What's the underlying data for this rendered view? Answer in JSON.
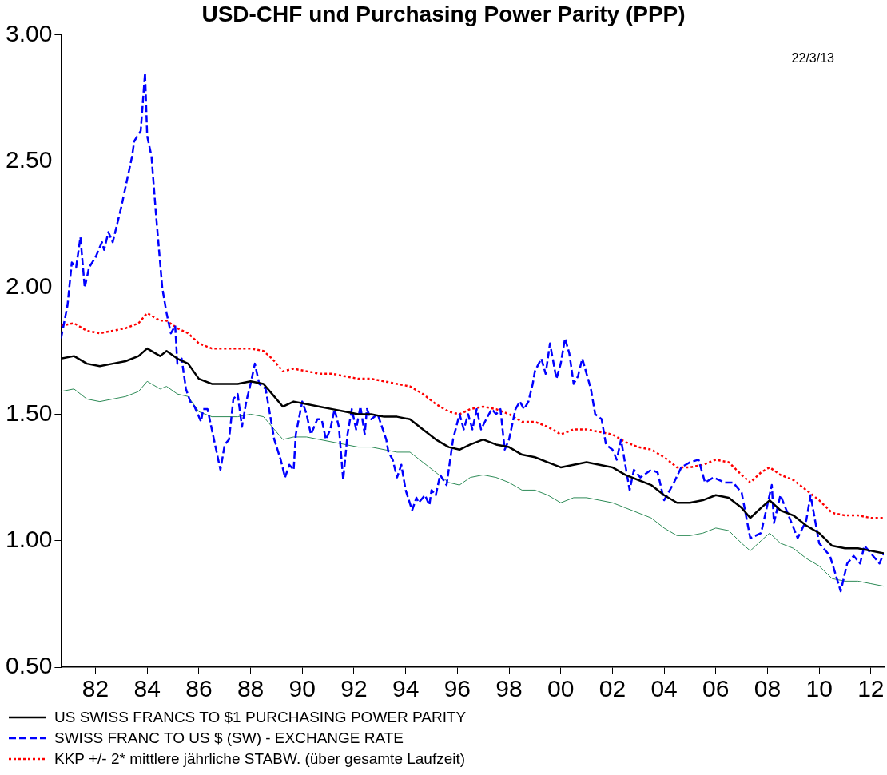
{
  "chart_data": {
    "type": "line",
    "title": "USD-CHF und Purchasing Power Parity (PPP)",
    "annotations": [
      "22/3/13"
    ],
    "xlim": [
      "1981-03",
      "2013-01"
    ],
    "xticks": [
      {
        "value": "1982-07",
        "label": "82"
      },
      {
        "value": "1984-07",
        "label": "84"
      },
      {
        "value": "1986-07",
        "label": "86"
      },
      {
        "value": "1988-07",
        "label": "88"
      },
      {
        "value": "1990-07",
        "label": "90"
      },
      {
        "value": "1992-07",
        "label": "92"
      },
      {
        "value": "1994-07",
        "label": "94"
      },
      {
        "value": "1996-07",
        "label": "96"
      },
      {
        "value": "1998-07",
        "label": "98"
      },
      {
        "value": "2000-07",
        "label": "00"
      },
      {
        "value": "2002-07",
        "label": "02"
      },
      {
        "value": "2004-07",
        "label": "04"
      },
      {
        "value": "2006-07",
        "label": "06"
      },
      {
        "value": "2008-07",
        "label": "08"
      },
      {
        "value": "2010-07",
        "label": "10"
      },
      {
        "value": "2012-07",
        "label": "12"
      }
    ],
    "ylim": [
      0.5,
      3.0
    ],
    "yticks": [
      {
        "value": 0.5,
        "label": "0.50"
      },
      {
        "value": 1.0,
        "label": "1.00"
      },
      {
        "value": 1.5,
        "label": "1.50"
      },
      {
        "value": 2.0,
        "label": "2.00"
      },
      {
        "value": 2.5,
        "label": "2.50"
      },
      {
        "value": 3.0,
        "label": "3.00"
      }
    ],
    "grid": false,
    "legend": "bottom left",
    "marker": "none",
    "series": [
      {
        "name": "US SWISS FRANCS TO $1 PURCHASING POWER PARITY",
        "color": "#000000",
        "line_style": "solid",
        "x": [
          "1981-03",
          "1981-09",
          "1982-03",
          "1982-09",
          "1983-03",
          "1983-09",
          "1984-03",
          "1984-07",
          "1985-01",
          "1985-04",
          "1985-09",
          "1986-02",
          "1986-07",
          "1987-01",
          "1987-07",
          "1988-01",
          "1988-07",
          "1989-01",
          "1989-05",
          "1989-10",
          "1990-03",
          "1990-09",
          "1991-03",
          "1991-09",
          "1992-03",
          "1992-09",
          "1993-03",
          "1993-09",
          "1994-03",
          "1994-09",
          "1995-03",
          "1995-09",
          "1996-03",
          "1996-08",
          "1997-01",
          "1997-07",
          "1998-01",
          "1998-07",
          "1999-01",
          "1999-07",
          "2000-01",
          "2000-07",
          "2001-01",
          "2001-07",
          "2002-01",
          "2002-07",
          "2003-01",
          "2003-07",
          "2004-01",
          "2004-07",
          "2005-01",
          "2005-07",
          "2006-01",
          "2006-07",
          "2007-01",
          "2007-07",
          "2007-11",
          "2008-04",
          "2008-08",
          "2009-01",
          "2009-07",
          "2010-01",
          "2010-07",
          "2011-01",
          "2011-07",
          "2012-01",
          "2012-07",
          "2013-01"
        ],
        "values": [
          1.72,
          1.73,
          1.7,
          1.69,
          1.7,
          1.71,
          1.73,
          1.76,
          1.73,
          1.75,
          1.72,
          1.7,
          1.64,
          1.62,
          1.62,
          1.62,
          1.63,
          1.62,
          1.58,
          1.53,
          1.55,
          1.54,
          1.53,
          1.52,
          1.51,
          1.5,
          1.5,
          1.49,
          1.49,
          1.48,
          1.44,
          1.4,
          1.37,
          1.36,
          1.38,
          1.4,
          1.38,
          1.37,
          1.34,
          1.33,
          1.31,
          1.29,
          1.3,
          1.31,
          1.3,
          1.29,
          1.26,
          1.24,
          1.22,
          1.18,
          1.15,
          1.15,
          1.16,
          1.18,
          1.17,
          1.13,
          1.09,
          1.13,
          1.16,
          1.12,
          1.1,
          1.06,
          1.03,
          0.98,
          0.97,
          0.97,
          0.96,
          0.95
        ]
      },
      {
        "name": "SWISS FRANC TO US $ (SW) - EXCHANGE RATE",
        "color": "#0000ff",
        "line_style": "dashed",
        "x": [
          "1981-03",
          "1981-06",
          "1981-08",
          "1981-10",
          "1981-12",
          "1982-02",
          "1982-04",
          "1982-07",
          "1982-10",
          "1982-11",
          "1983-01",
          "1983-03",
          "1983-05",
          "1983-07",
          "1983-09",
          "1983-12",
          "1984-01",
          "1984-04",
          "1984-06",
          "1984-07",
          "1984-09",
          "1984-11",
          "1985-01",
          "1985-02",
          "1985-04",
          "1985-06",
          "1985-08",
          "1985-09",
          "1985-11",
          "1986-01",
          "1986-03",
          "1986-05",
          "1986-08",
          "1986-09",
          "1986-11",
          "1987-02",
          "1987-05",
          "1987-07",
          "1987-09",
          "1987-11",
          "1988-01",
          "1988-03",
          "1988-05",
          "1988-07",
          "1988-09",
          "1988-11",
          "1989-02",
          "1989-04",
          "1989-06",
          "1989-09",
          "1989-11",
          "1990-01",
          "1990-03",
          "1990-04",
          "1990-07",
          "1990-09",
          "1990-11",
          "1991-02",
          "1991-04",
          "1991-06",
          "1991-08",
          "1991-10",
          "1991-12",
          "1992-02",
          "1992-04",
          "1992-06",
          "1992-08",
          "1992-10",
          "1992-12",
          "1993-01",
          "1993-03",
          "1993-06",
          "1993-08",
          "1993-10",
          "1993-11",
          "1994-01",
          "1994-03",
          "1994-05",
          "1994-07",
          "1994-10",
          "1994-12",
          "1995-01",
          "1995-04",
          "1995-06",
          "1995-07",
          "1995-09",
          "1995-11",
          "1996-02",
          "1996-03",
          "1996-05",
          "1996-08",
          "1996-10",
          "1996-12",
          "1997-02",
          "1997-04",
          "1997-06",
          "1997-09",
          "1997-11",
          "1998-01",
          "1998-03",
          "1998-05",
          "1998-07",
          "1998-10",
          "1998-12",
          "1999-02",
          "1999-04",
          "1999-06",
          "1999-07",
          "1999-10",
          "1999-12",
          "2000-02",
          "2000-05",
          "2000-07",
          "2000-09",
          "2000-11",
          "2001-01",
          "2001-03",
          "2001-05",
          "2001-07",
          "2001-09",
          "2001-11",
          "2002-02",
          "2002-04",
          "2002-07",
          "2002-09",
          "2002-11",
          "2003-01",
          "2003-03",
          "2003-05",
          "2003-08",
          "2004-01",
          "2004-04",
          "2004-07",
          "2004-11",
          "2005-03",
          "2005-07",
          "2005-11",
          "2006-02",
          "2006-06",
          "2006-11",
          "2007-03",
          "2007-07",
          "2007-11",
          "2008-04",
          "2008-09",
          "2008-10",
          "2009-01",
          "2009-09",
          "2010-01",
          "2010-03",
          "2010-07",
          "2010-12",
          "2011-05",
          "2011-08",
          "2011-11",
          "2012-02",
          "2012-04",
          "2012-08",
          "2012-11",
          "2013-01"
        ],
        "values": [
          1.8,
          1.93,
          2.1,
          2.08,
          2.2,
          2.0,
          2.08,
          2.12,
          2.18,
          2.15,
          2.22,
          2.18,
          2.25,
          2.32,
          2.4,
          2.52,
          2.58,
          2.62,
          2.85,
          2.6,
          2.52,
          2.3,
          2.1,
          2.0,
          1.9,
          1.82,
          1.85,
          1.7,
          1.72,
          1.6,
          1.55,
          1.53,
          1.47,
          1.52,
          1.52,
          1.4,
          1.28,
          1.38,
          1.4,
          1.56,
          1.58,
          1.45,
          1.55,
          1.62,
          1.7,
          1.62,
          1.6,
          1.5,
          1.4,
          1.32,
          1.25,
          1.3,
          1.28,
          1.42,
          1.55,
          1.5,
          1.42,
          1.48,
          1.48,
          1.4,
          1.44,
          1.52,
          1.45,
          1.24,
          1.42,
          1.52,
          1.44,
          1.53,
          1.42,
          1.52,
          1.48,
          1.5,
          1.45,
          1.4,
          1.35,
          1.32,
          1.25,
          1.3,
          1.2,
          1.12,
          1.17,
          1.15,
          1.18,
          1.14,
          1.2,
          1.18,
          1.26,
          1.22,
          1.28,
          1.4,
          1.5,
          1.44,
          1.5,
          1.44,
          1.52,
          1.44,
          1.49,
          1.52,
          1.5,
          1.52,
          1.36,
          1.4,
          1.52,
          1.55,
          1.52,
          1.55,
          1.62,
          1.67,
          1.72,
          1.66,
          1.78,
          1.64,
          1.7,
          1.8,
          1.74,
          1.62,
          1.65,
          1.72,
          1.66,
          1.6,
          1.5,
          1.48,
          1.38,
          1.36,
          1.32,
          1.4,
          1.3,
          1.2,
          1.28,
          1.25,
          1.28,
          1.27,
          1.16,
          1.22,
          1.29,
          1.31,
          1.32,
          1.23,
          1.25,
          1.23,
          1.23,
          1.19,
          1.01,
          1.03,
          1.22,
          1.07,
          1.18,
          1.01,
          1.08,
          1.18,
          0.99,
          0.94,
          0.8,
          0.91,
          0.94,
          0.91,
          0.98,
          0.94,
          0.91,
          0.95
        ]
      },
      {
        "name": "KKP +/- 2* mittlere jährliche STABW. (über gesamte Laufzeit)",
        "color": "#ff0000",
        "line_style": "dotted",
        "x": [
          "1981-03",
          "1981-09",
          "1982-03",
          "1982-09",
          "1983-03",
          "1983-09",
          "1984-03",
          "1984-07",
          "1985-01",
          "1985-04",
          "1985-09",
          "1986-02",
          "1986-07",
          "1987-01",
          "1987-07",
          "1988-01",
          "1988-07",
          "1989-01",
          "1989-05",
          "1989-10",
          "1990-03",
          "1990-09",
          "1991-03",
          "1991-09",
          "1992-03",
          "1992-09",
          "1993-03",
          "1993-09",
          "1994-03",
          "1994-09",
          "1995-03",
          "1995-09",
          "1996-03",
          "1996-08",
          "1997-01",
          "1997-07",
          "1998-01",
          "1998-07",
          "1999-01",
          "1999-07",
          "2000-01",
          "2000-07",
          "2001-01",
          "2001-07",
          "2002-01",
          "2002-07",
          "2003-01",
          "2003-07",
          "2004-01",
          "2004-07",
          "2005-01",
          "2005-07",
          "2006-01",
          "2006-07",
          "2007-01",
          "2007-07",
          "2007-11",
          "2008-04",
          "2008-08",
          "2009-01",
          "2009-07",
          "2010-01",
          "2010-07",
          "2011-01",
          "2011-07",
          "2012-01",
          "2012-07",
          "2013-01"
        ],
        "values": [
          1.85,
          1.86,
          1.83,
          1.82,
          1.83,
          1.84,
          1.86,
          1.9,
          1.87,
          1.87,
          1.84,
          1.82,
          1.78,
          1.76,
          1.76,
          1.76,
          1.76,
          1.75,
          1.72,
          1.67,
          1.68,
          1.67,
          1.66,
          1.66,
          1.65,
          1.64,
          1.64,
          1.63,
          1.62,
          1.61,
          1.58,
          1.54,
          1.51,
          1.5,
          1.52,
          1.53,
          1.52,
          1.5,
          1.47,
          1.47,
          1.45,
          1.42,
          1.44,
          1.44,
          1.43,
          1.42,
          1.39,
          1.37,
          1.36,
          1.33,
          1.29,
          1.29,
          1.3,
          1.32,
          1.31,
          1.26,
          1.23,
          1.27,
          1.29,
          1.26,
          1.24,
          1.2,
          1.16,
          1.11,
          1.1,
          1.1,
          1.09,
          1.09
        ]
      },
      {
        "color": "#2e8b57",
        "line_style": "solid",
        "x": [
          "1981-03",
          "1981-09",
          "1982-03",
          "1982-09",
          "1983-03",
          "1983-09",
          "1984-03",
          "1984-07",
          "1985-01",
          "1985-04",
          "1985-09",
          "1986-02",
          "1986-07",
          "1987-01",
          "1987-07",
          "1988-01",
          "1988-07",
          "1989-01",
          "1989-05",
          "1989-10",
          "1990-03",
          "1990-09",
          "1991-03",
          "1991-09",
          "1992-03",
          "1992-09",
          "1993-03",
          "1993-09",
          "1994-03",
          "1994-09",
          "1995-03",
          "1995-09",
          "1996-03",
          "1996-08",
          "1997-01",
          "1997-07",
          "1998-01",
          "1998-07",
          "1999-01",
          "1999-07",
          "2000-01",
          "2000-07",
          "2001-01",
          "2001-07",
          "2002-01",
          "2002-07",
          "2003-01",
          "2003-07",
          "2004-01",
          "2004-07",
          "2005-01",
          "2005-07",
          "2006-01",
          "2006-07",
          "2007-01",
          "2007-07",
          "2007-11",
          "2008-04",
          "2008-08",
          "2009-01",
          "2009-07",
          "2010-01",
          "2010-07",
          "2011-01",
          "2011-07",
          "2012-01",
          "2012-07",
          "2013-01"
        ],
        "values": [
          1.59,
          1.6,
          1.56,
          1.55,
          1.56,
          1.57,
          1.59,
          1.63,
          1.6,
          1.61,
          1.58,
          1.57,
          1.51,
          1.49,
          1.49,
          1.49,
          1.5,
          1.49,
          1.45,
          1.4,
          1.41,
          1.41,
          1.4,
          1.39,
          1.38,
          1.37,
          1.37,
          1.36,
          1.35,
          1.35,
          1.31,
          1.27,
          1.23,
          1.22,
          1.25,
          1.26,
          1.25,
          1.23,
          1.2,
          1.2,
          1.18,
          1.15,
          1.17,
          1.17,
          1.16,
          1.15,
          1.13,
          1.11,
          1.09,
          1.05,
          1.02,
          1.02,
          1.03,
          1.05,
          1.04,
          0.99,
          0.96,
          1.0,
          1.03,
          0.99,
          0.97,
          0.93,
          0.9,
          0.85,
          0.84,
          0.84,
          0.83,
          0.82
        ]
      }
    ]
  }
}
